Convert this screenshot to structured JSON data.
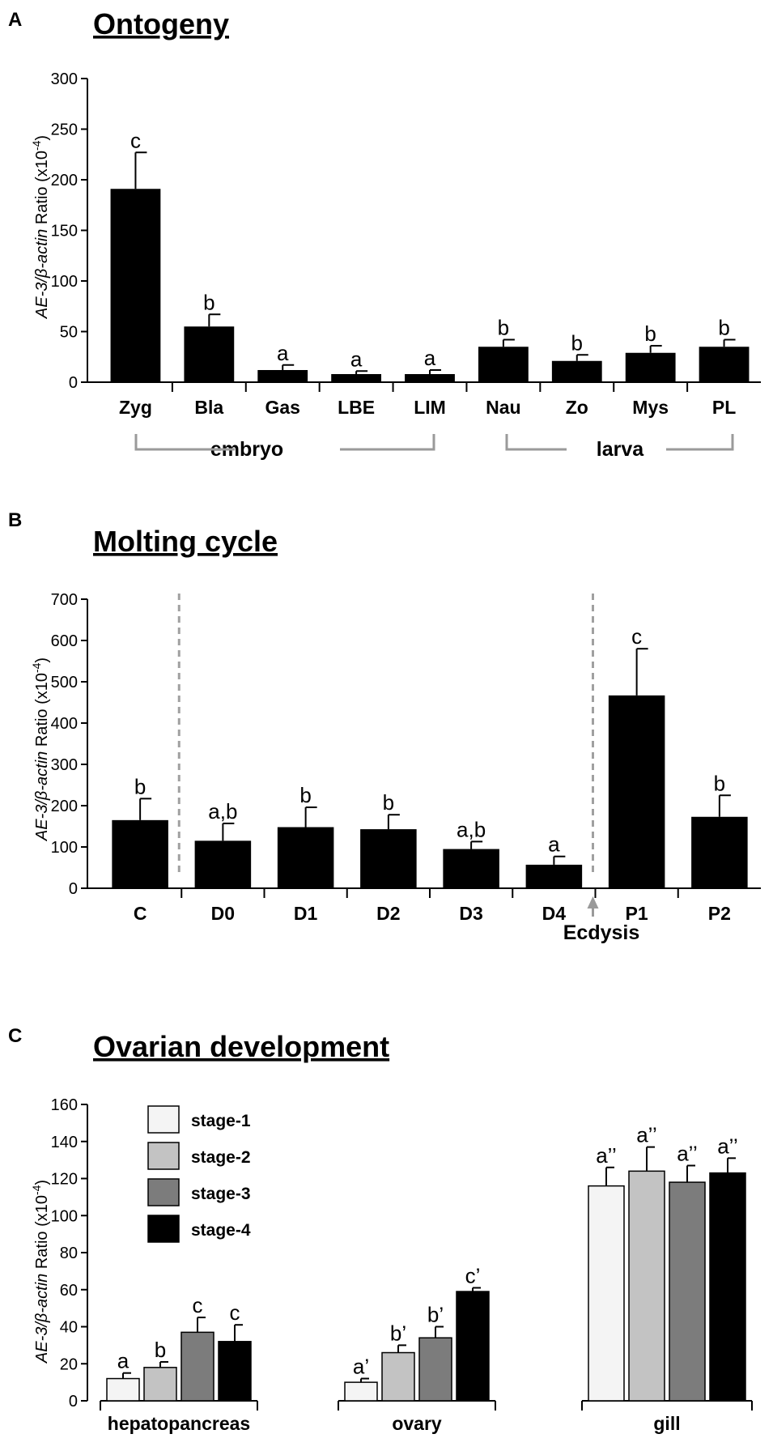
{
  "figure": {
    "panels": [
      {
        "letter": "A",
        "title": "Ontogeny"
      },
      {
        "letter": "B",
        "title": "Molting cycle"
      },
      {
        "letter": "C",
        "title": "Ovarian development"
      }
    ],
    "y_label": {
      "gene_italic": "AE-3/β-actin",
      "rest": " Ratio (x10",
      "exp": "-4",
      "close": ")"
    },
    "groups_A": [
      {
        "label": "embryo"
      },
      {
        "label": "larva"
      }
    ],
    "ecdysis_label": "Ecdysis",
    "colors": {
      "bar": "#000000",
      "stage_1": "#f4f4f4",
      "stage_2": "#c3c3c3",
      "stage_3": "#7c7c7c",
      "stage_4": "#000000",
      "bracket": "#9a9a9a",
      "divider": "#a0a0a0"
    }
  },
  "chart_data": [
    {
      "type": "bar",
      "title": "Ontogeny",
      "ylabel": "AE-3/β-actin Ratio (x10-4)",
      "ylim": [
        0,
        300
      ],
      "yticks": [
        0,
        50,
        100,
        150,
        200,
        250,
        300
      ],
      "categories": [
        "Zyg",
        "Bla",
        "Gas",
        "LBE",
        "LIM",
        "Nau",
        "Zo",
        "Mys",
        "PL"
      ],
      "values": [
        191,
        55,
        12,
        8,
        8,
        35,
        21,
        29,
        35
      ],
      "errors": [
        36,
        12,
        5,
        3,
        4,
        7,
        6,
        7,
        7
      ],
      "significance": [
        "c",
        "b",
        "a",
        "a",
        "a",
        "b",
        "b",
        "b",
        "b"
      ],
      "groups": [
        {
          "label": "embryo",
          "categories": [
            "Zyg",
            "Bla",
            "Gas",
            "LBE",
            "LIM"
          ]
        },
        {
          "label": "larva",
          "categories": [
            "Nau",
            "Zo",
            "Mys",
            "PL"
          ]
        }
      ]
    },
    {
      "type": "bar",
      "title": "Molting cycle",
      "ylabel": "AE-3/β-actin Ratio (x10-4)",
      "ylim": [
        0,
        700
      ],
      "yticks": [
        0,
        100,
        200,
        300,
        400,
        500,
        600,
        700
      ],
      "categories": [
        "C",
        "D0",
        "D1",
        "D2",
        "D3",
        "D4",
        "P1",
        "P2"
      ],
      "values": [
        165,
        115,
        148,
        143,
        95,
        57,
        467,
        173
      ],
      "errors": [
        52,
        42,
        48,
        35,
        18,
        20,
        113,
        52
      ],
      "significance": [
        "b",
        "a,b",
        "b",
        "b",
        "a,b",
        "a",
        "c",
        "b"
      ],
      "annotations": [
        "Ecdysis"
      ]
    },
    {
      "type": "bar",
      "title": "Ovarian development",
      "ylabel": "AE-3/β-actin Ratio (x10-4)",
      "ylim": [
        0,
        160
      ],
      "yticks": [
        0,
        20,
        40,
        60,
        80,
        100,
        120,
        140,
        160
      ],
      "categories": [
        "hepatopancreas",
        "ovary",
        "gill"
      ],
      "legend_position": "top-left",
      "series": [
        {
          "name": "stage-1",
          "values": [
            12,
            10,
            116
          ],
          "errors": [
            3,
            2,
            10
          ],
          "significance": [
            "a",
            "a’",
            "a’’"
          ]
        },
        {
          "name": "stage-2",
          "values": [
            18,
            26,
            124
          ],
          "errors": [
            3,
            4,
            13
          ],
          "significance": [
            "b",
            "b’",
            "a’’"
          ]
        },
        {
          "name": "stage-3",
          "values": [
            37,
            34,
            118
          ],
          "errors": [
            8,
            6,
            9
          ],
          "significance": [
            "c",
            "b’",
            "a’’"
          ]
        },
        {
          "name": "stage-4",
          "values": [
            32,
            59,
            123
          ],
          "errors": [
            9,
            2,
            8
          ],
          "significance": [
            "c",
            "c’",
            "a’’"
          ]
        }
      ]
    }
  ]
}
